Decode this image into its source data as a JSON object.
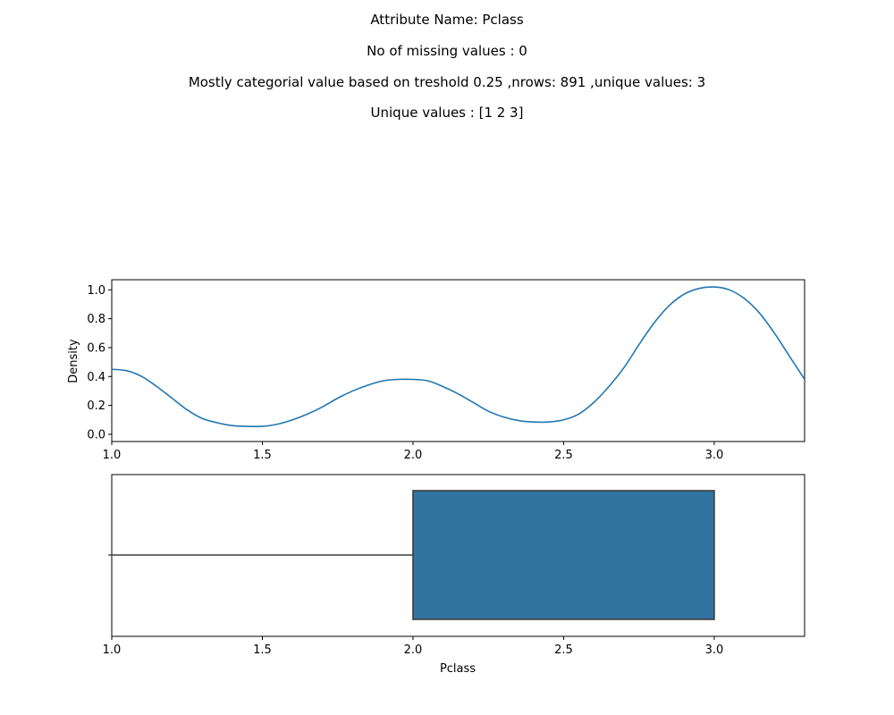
{
  "header": {
    "attribute_line": "Attribute Name: Pclass",
    "missing_line": "No of missing values : 0",
    "categorical_line": "Mostly categorial value based on treshold 0.25 ,nrows: 891 ,unique values: 3",
    "unique_line": "Unique values : [1 2 3]"
  },
  "chart_data": [
    {
      "type": "line",
      "title": "",
      "xlabel": "",
      "ylabel": "Density",
      "xlim": [
        1.0,
        3.3
      ],
      "ylim": [
        -0.05,
        1.07
      ],
      "x_ticks": [
        "1.0",
        "1.5",
        "2.0",
        "2.5",
        "3.0"
      ],
      "y_ticks": [
        "0.0",
        "0.2",
        "0.4",
        "0.6",
        "0.8",
        "1.0"
      ],
      "grid": false,
      "line_color": "#1f77b4",
      "series": [
        {
          "x": [
            1.0,
            1.05,
            1.1,
            1.15,
            1.2,
            1.25,
            1.3,
            1.35,
            1.4,
            1.45,
            1.5,
            1.55,
            1.6,
            1.65,
            1.7,
            1.75,
            1.8,
            1.85,
            1.9,
            1.95,
            2.0,
            2.05,
            2.1,
            2.15,
            2.2,
            2.25,
            2.3,
            2.35,
            2.4,
            2.45,
            2.5,
            2.55,
            2.6,
            2.65,
            2.7,
            2.75,
            2.8,
            2.85,
            2.9,
            2.95,
            3.0,
            3.05,
            3.1,
            3.15,
            3.2,
            3.25,
            3.3
          ],
          "y": [
            0.45,
            0.44,
            0.4,
            0.33,
            0.25,
            0.17,
            0.11,
            0.08,
            0.06,
            0.055,
            0.055,
            0.07,
            0.1,
            0.14,
            0.19,
            0.25,
            0.3,
            0.34,
            0.37,
            0.38,
            0.38,
            0.37,
            0.33,
            0.28,
            0.22,
            0.16,
            0.12,
            0.095,
            0.085,
            0.085,
            0.1,
            0.14,
            0.22,
            0.33,
            0.46,
            0.62,
            0.77,
            0.89,
            0.97,
            1.01,
            1.02,
            1.0,
            0.94,
            0.84,
            0.7,
            0.54,
            0.38
          ]
        }
      ]
    },
    {
      "type": "box",
      "title": "",
      "xlabel": "Pclass",
      "ylabel": "",
      "xlim": [
        1.0,
        3.3
      ],
      "x_ticks": [
        "1.0",
        "1.5",
        "2.0",
        "2.5",
        "3.0"
      ],
      "grid": false,
      "box_color": "#3274a1",
      "min": 1.0,
      "q1": 2.0,
      "median": 3.0,
      "q3": 3.0,
      "max": 3.0
    }
  ]
}
